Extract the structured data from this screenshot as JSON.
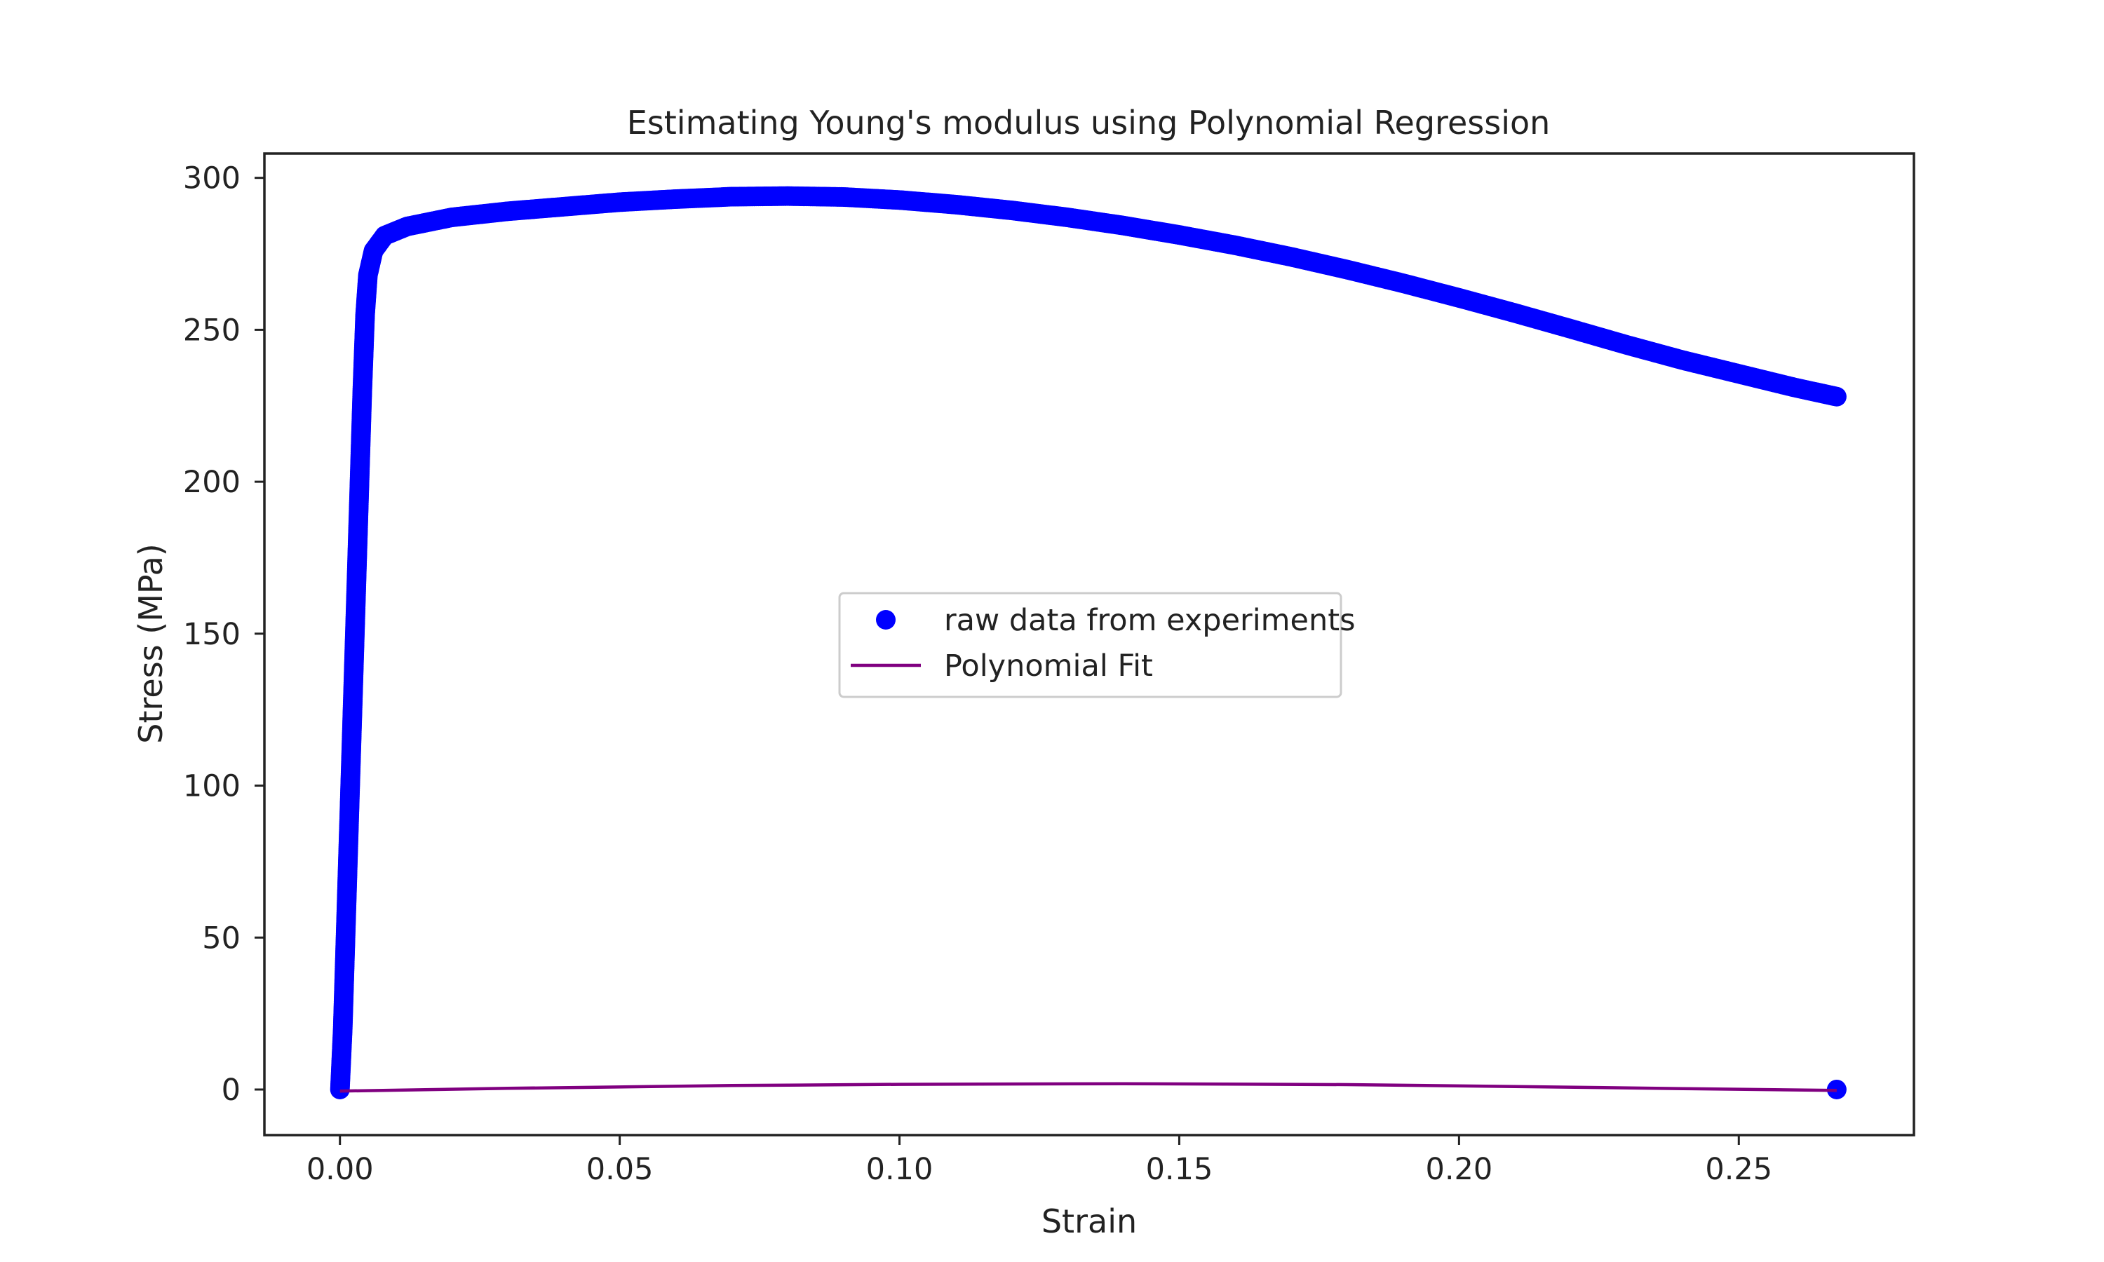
{
  "chart_data": {
    "type": "scatter",
    "title": "Estimating Young's modulus using Polynomial Regression",
    "xlabel": "Strain",
    "ylabel": "Stress (MPa)",
    "xlim": [
      -0.0135,
      0.2813
    ],
    "ylim": [
      -15,
      308
    ],
    "xticks": [
      0.0,
      0.05,
      0.1,
      0.15,
      0.2,
      0.25
    ],
    "xtick_labels": [
      "0.00",
      "0.05",
      "0.10",
      "0.15",
      "0.20",
      "0.25"
    ],
    "yticks": [
      0,
      50,
      100,
      150,
      200,
      250,
      300
    ],
    "ytick_labels": [
      "0",
      "50",
      "100",
      "150",
      "200",
      "250",
      "300"
    ],
    "grid": false,
    "legend_position": "center",
    "series": [
      {
        "name": "raw data from experiments",
        "kind": "scatter",
        "color": "#0000ff",
        "points": [
          [
            0.0,
            0
          ],
          [
            0.0005,
            20
          ],
          [
            0.001,
            50
          ],
          [
            0.0015,
            80
          ],
          [
            0.002,
            110
          ],
          [
            0.0025,
            140
          ],
          [
            0.003,
            170
          ],
          [
            0.0035,
            200
          ],
          [
            0.004,
            230
          ],
          [
            0.0045,
            255
          ],
          [
            0.005,
            268
          ],
          [
            0.006,
            276
          ],
          [
            0.008,
            281
          ],
          [
            0.012,
            284
          ],
          [
            0.02,
            287
          ],
          [
            0.03,
            289
          ],
          [
            0.04,
            290.5
          ],
          [
            0.05,
            292
          ],
          [
            0.06,
            293
          ],
          [
            0.07,
            293.8
          ],
          [
            0.08,
            294
          ],
          [
            0.09,
            293.7
          ],
          [
            0.1,
            292.7
          ],
          [
            0.11,
            291.2
          ],
          [
            0.12,
            289.3
          ],
          [
            0.13,
            287
          ],
          [
            0.14,
            284.3
          ],
          [
            0.15,
            281.2
          ],
          [
            0.16,
            277.8
          ],
          [
            0.17,
            274
          ],
          [
            0.18,
            269.8
          ],
          [
            0.19,
            265.3
          ],
          [
            0.2,
            260.5
          ],
          [
            0.21,
            255.5
          ],
          [
            0.22,
            250.3
          ],
          [
            0.23,
            245
          ],
          [
            0.24,
            240
          ],
          [
            0.25,
            235.5
          ],
          [
            0.26,
            231
          ],
          [
            0.2675,
            228
          ],
          [
            0.2675,
            0
          ]
        ]
      },
      {
        "name": "Polynomial Fit",
        "kind": "line",
        "color": "#800080",
        "points": [
          [
            0.0,
            -0.5
          ],
          [
            0.03,
            0.4
          ],
          [
            0.07,
            1.3
          ],
          [
            0.1,
            1.7
          ],
          [
            0.14,
            1.9
          ],
          [
            0.18,
            1.6
          ],
          [
            0.21,
            1.0
          ],
          [
            0.24,
            0.3
          ],
          [
            0.2675,
            -0.3
          ]
        ]
      }
    ]
  }
}
